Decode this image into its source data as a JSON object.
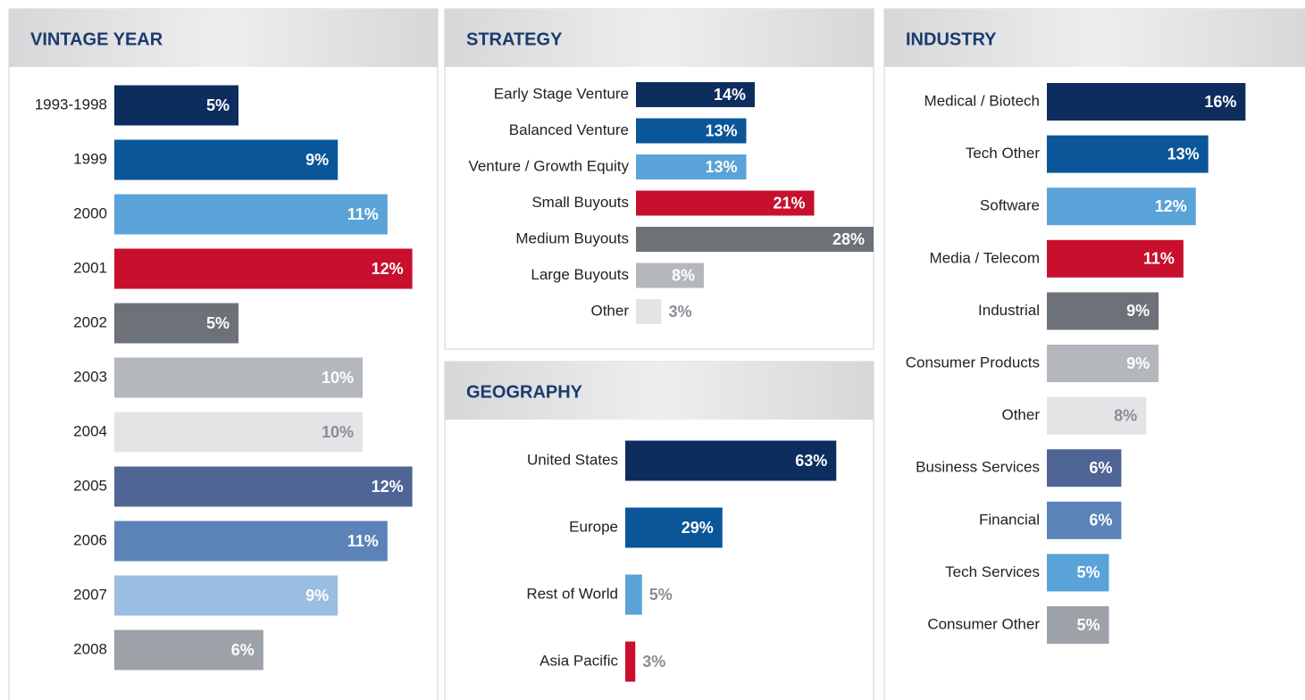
{
  "chart_data": [
    {
      "type": "bar",
      "title": "VINTAGE YEAR",
      "categories": [
        "1993-1998",
        "1999",
        "2000",
        "2001",
        "2002",
        "2003",
        "2004",
        "2005",
        "2006",
        "2007",
        "2008"
      ],
      "values": [
        5,
        9,
        11,
        12,
        5,
        10,
        10,
        12,
        11,
        9,
        6
      ],
      "value_labels": [
        "5%",
        "9%",
        "11%",
        "12%",
        "5%",
        "10%",
        "10%",
        "12%",
        "11%",
        "9%",
        "6%"
      ],
      "colors": [
        "#0d2d5e",
        "#0a5699",
        "#5aa3d8",
        "#c8102e",
        "#6d7178",
        "#b4b7bc",
        "#e3e4e6",
        "#4f6596",
        "#5b83b8",
        "#9abde2",
        "#9da1a8"
      ]
    },
    {
      "type": "bar",
      "title": "STRATEGY",
      "categories": [
        "Early Stage Venture",
        "Balanced Venture",
        "Venture / Growth Equity",
        "Small Buyouts",
        "Medium Buyouts",
        "Large Buyouts",
        "Other"
      ],
      "values": [
        14,
        13,
        13,
        21,
        28,
        8,
        3
      ],
      "value_labels": [
        "14%",
        "13%",
        "13%",
        "21%",
        "28%",
        "8%",
        "3%"
      ],
      "colors": [
        "#0d2d5e",
        "#0a5699",
        "#5aa3d8",
        "#c8102e",
        "#6d7178",
        "#b4b7bc",
        "#e3e4e6"
      ]
    },
    {
      "type": "bar",
      "title": "GEOGRAPHY",
      "categories": [
        "United States",
        "Europe",
        "Rest of World",
        "Asia Pacific"
      ],
      "values": [
        63,
        29,
        5,
        3
      ],
      "value_labels": [
        "63%",
        "29%",
        "5%",
        "3%"
      ],
      "colors": [
        "#0d2d5e",
        "#0a5699",
        "#5aa3d8",
        "#c8102e"
      ]
    },
    {
      "type": "bar",
      "title": "INDUSTRY",
      "categories": [
        "Medical / Biotech",
        "Tech Other",
        "Software",
        "Media / Telecom",
        "Industrial",
        "Consumer Products",
        "Other",
        "Business Services",
        "Financial",
        "Tech Services",
        "Consumer Other"
      ],
      "values": [
        16,
        13,
        12,
        11,
        9,
        9,
        8,
        6,
        6,
        5,
        5
      ],
      "value_labels": [
        "16%",
        "13%",
        "12%",
        "11%",
        "9%",
        "9%",
        "8%",
        "6%",
        "6%",
        "5%",
        "5%"
      ],
      "colors": [
        "#0d2d5e",
        "#0a5699",
        "#5aa3d8",
        "#c8102e",
        "#6d7178",
        "#b4b7bc",
        "#e3e4e6",
        "#4f6596",
        "#5b83b8",
        "#5aa3d8",
        "#9da1a8"
      ]
    }
  ]
}
